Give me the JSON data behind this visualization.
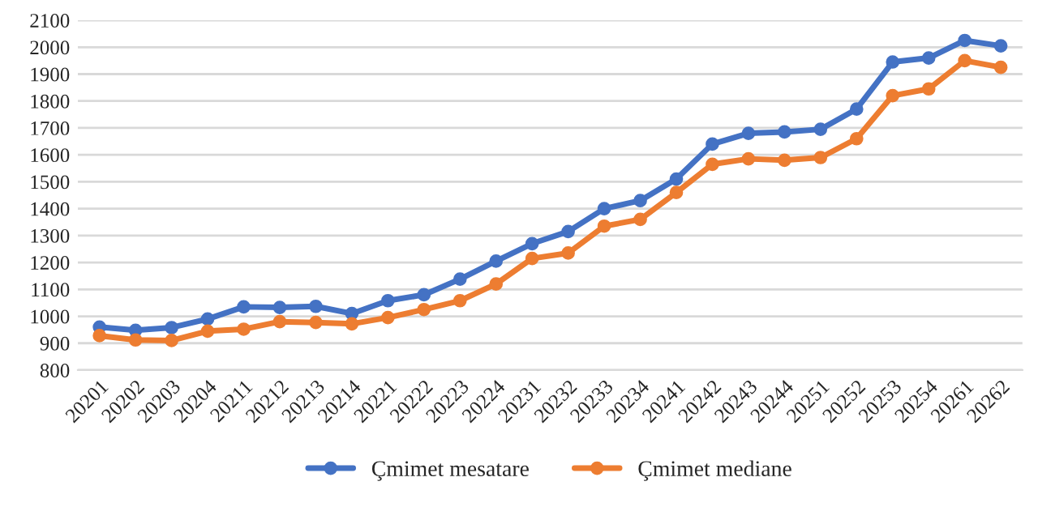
{
  "chart_data": {
    "type": "line",
    "categories": [
      "20201",
      "20202",
      "20203",
      "20204",
      "20211",
      "20212",
      "20213",
      "20214",
      "20221",
      "20222",
      "20223",
      "20224",
      "20231",
      "20232",
      "20233",
      "20234",
      "20241",
      "20242",
      "20243",
      "20244",
      "20251",
      "20252",
      "20253",
      "20254",
      "20261",
      "20262"
    ],
    "series": [
      {
        "name": "Çmimet mesatare",
        "color": "#4472c4",
        "values": [
          960,
          948,
          958,
          990,
          1035,
          1033,
          1037,
          1010,
          1058,
          1080,
          1138,
          1205,
          1270,
          1315,
          1400,
          1430,
          1510,
          1640,
          1680,
          1685,
          1695,
          1770,
          1945,
          1960,
          2025,
          2005
        ]
      },
      {
        "name": "Çmimet mediane",
        "color": "#ed7d31",
        "values": [
          928,
          912,
          910,
          945,
          952,
          980,
          977,
          972,
          995,
          1025,
          1058,
          1120,
          1215,
          1235,
          1335,
          1360,
          1460,
          1565,
          1585,
          1580,
          1590,
          1660,
          1820,
          1845,
          1950,
          1925
        ]
      }
    ],
    "ylim": [
      800,
      2100
    ],
    "yticks": [
      800,
      900,
      1000,
      1100,
      1200,
      1300,
      1400,
      1500,
      1600,
      1700,
      1800,
      1900,
      2000,
      2100
    ],
    "grid": "y",
    "legend": "bottom",
    "marker": "circle",
    "line_style": "solid"
  }
}
